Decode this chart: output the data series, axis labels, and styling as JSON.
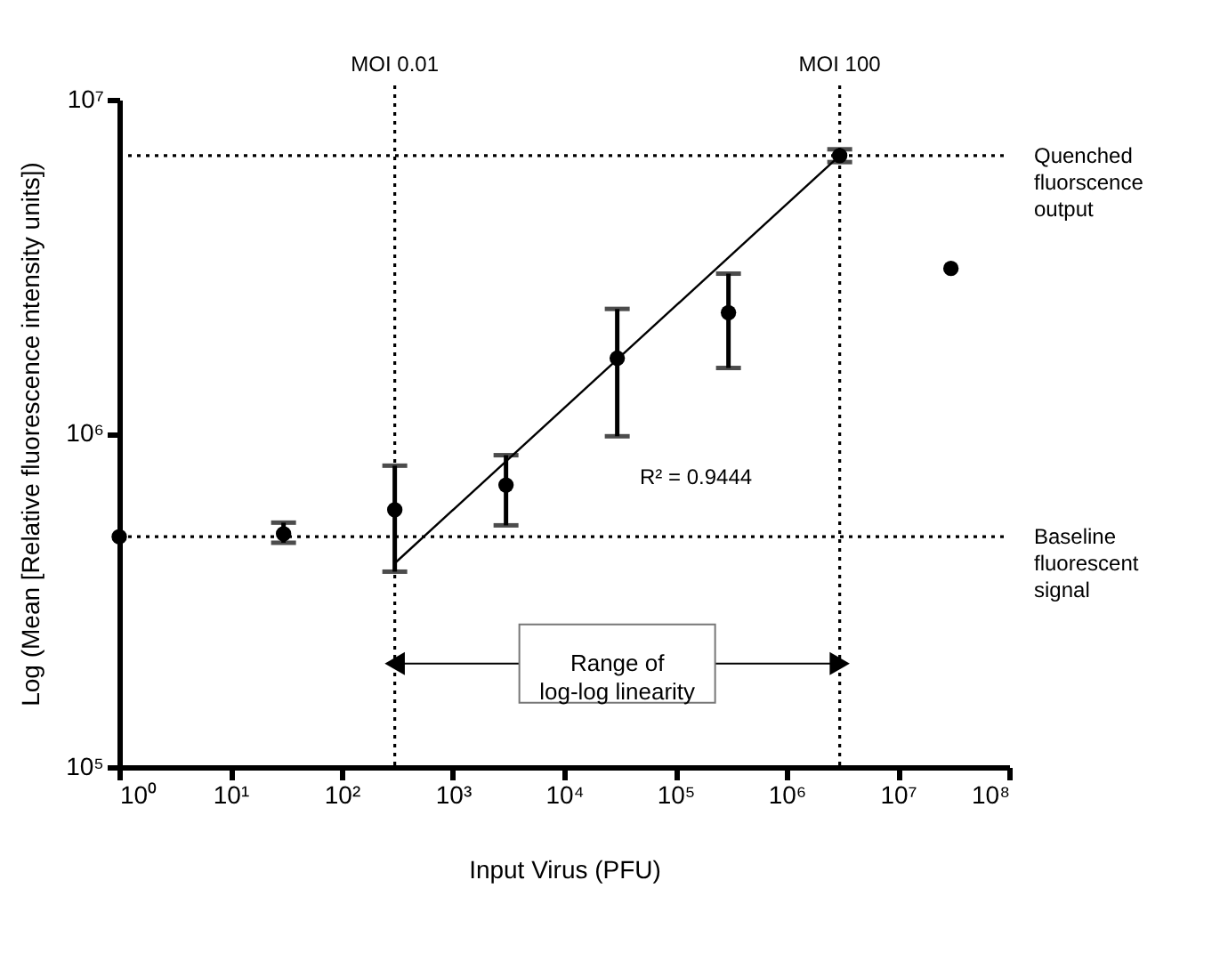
{
  "chart_data": {
    "type": "scatter",
    "xlabel": "Input Virus (PFU)",
    "ylabel": "Log (Mean [Relative fluorescence intensity units])",
    "log": "xy",
    "grid": false,
    "marker": "circle",
    "xlim": [
      1,
      100000000
    ],
    "ylim": [
      100000,
      10000000
    ],
    "xticks": [
      {
        "value": 1,
        "label": "10⁰"
      },
      {
        "value": 10,
        "label": "10¹"
      },
      {
        "value": 100,
        "label": "10²"
      },
      {
        "value": 1000,
        "label": "10³"
      },
      {
        "value": 10000,
        "label": "10⁴"
      },
      {
        "value": 100000,
        "label": "10⁵"
      },
      {
        "value": 1000000,
        "label": "10⁶"
      },
      {
        "value": 10000000,
        "label": "10⁷"
      },
      {
        "value": 100000000,
        "label": "10⁸"
      }
    ],
    "yticks": [
      {
        "value": 100000,
        "label": "10⁵"
      },
      {
        "value": 1000000,
        "label": "10⁶"
      },
      {
        "value": 10000000,
        "label": "10⁷"
      }
    ],
    "series": [
      {
        "color": "#000000",
        "x": [
          1,
          30,
          300,
          3000,
          30000,
          300000,
          3000000,
          30000000
        ],
        "values": [
          490000,
          500000,
          590000,
          700000,
          1680000,
          2300000,
          6800000,
          3120000
        ],
        "errors": [
          null,
          [
            470000,
            540000
          ],
          [
            385000,
            800000
          ],
          [
            530000,
            860000
          ],
          [
            980000,
            2360000
          ],
          [
            1570000,
            3010000
          ],
          [
            6500000,
            7100000
          ],
          null
        ]
      },
      {
        "type": "line",
        "color": "#000000",
        "marker": "none",
        "line_style": "solid",
        "x": [
          300,
          3000000
        ],
        "values": [
          408000,
          6800000
        ]
      }
    ],
    "ref_lines": [
      {
        "axis": "x",
        "value": 300,
        "label": "MOI 0.01",
        "color": "#000000",
        "line_style": "dotted"
      },
      {
        "axis": "x",
        "value": 3000000,
        "label": "MOI 100",
        "color": "#000000",
        "line_style": "dotted"
      },
      {
        "axis": "y",
        "value": 6800000,
        "label": "Quenched fluorscence output",
        "color": "#000000",
        "line_style": "dotted"
      },
      {
        "axis": "y",
        "value": 490000,
        "label": "Baseline fluorescent signal",
        "color": "#000000",
        "line_style": "dotted"
      }
    ],
    "annotations": [
      "R² = 0.9444",
      "Range of\nlog-log linearity"
    ]
  }
}
